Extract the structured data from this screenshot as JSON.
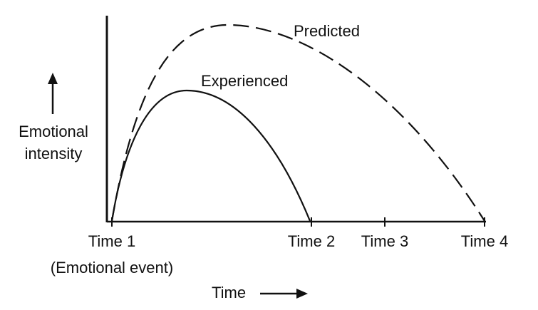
{
  "axis_label_y": [
    "Emotional",
    "intensity"
  ],
  "axis_label_x": "Time",
  "curves": [
    {
      "label": "Predicted"
    },
    {
      "label": "Experienced"
    }
  ],
  "x_labels": [
    "Time 1",
    "Time 2",
    "Time 3",
    "Time 4"
  ],
  "event_note": "(Emotional event)"
}
